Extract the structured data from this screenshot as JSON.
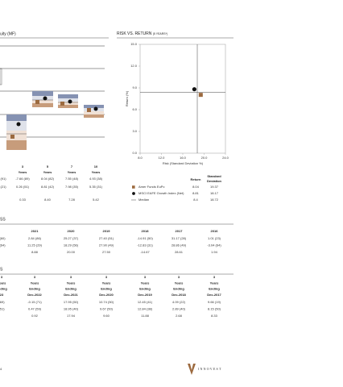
{
  "header": {
    "left_title": "uity (MF)",
    "right_title": "RISK VS. RETURN",
    "right_subtitle": "(5 YEARS*)"
  },
  "trailing": {
    "periods": [
      [
        "3",
        "Years"
      ],
      [
        "5",
        "Years"
      ],
      [
        "7",
        "Years"
      ],
      [
        "10",
        "Years"
      ]
    ],
    "rows": [
      [
        "(91)",
        "-7.66 (89)",
        "8.04 (82)",
        "7.55 (48)",
        "4.93 (38)"
      ],
      [
        "(21)",
        "0.26 (51)",
        "8.81 (42)",
        "7.98 (35)",
        "5.35 (31)"
      ],
      [
        "",
        "0.33",
        "8.40",
        "7.28",
        "5.42"
      ]
    ]
  },
  "chart_data": {
    "type": "scatter",
    "xlabel": "Risk (Standard Deviation %)",
    "ylabel": "Return (%)",
    "xlim": [
      8,
      24
    ],
    "xticks": [
      {
        "value": 8,
        "label": "8.0"
      },
      {
        "value": 12,
        "label": "12.0"
      },
      {
        "value": 16,
        "label": "16.0"
      },
      {
        "value": 20,
        "label": "20.0"
      },
      {
        "value": 24,
        "label": "24.0"
      }
    ],
    "ylim": [
      0,
      15
    ],
    "yticks": [
      {
        "value": 0,
        "label": "0.0"
      },
      {
        "value": 3,
        "label": "3.0"
      },
      {
        "value": 6,
        "label": "6.0"
      },
      {
        "value": 9,
        "label": "9.0"
      },
      {
        "value": 12,
        "label": "12.0"
      },
      {
        "value": 15,
        "label": "15.0"
      }
    ],
    "legend_headers": [
      "Return",
      "Standard",
      "Deviation"
    ],
    "series": [
      {
        "name": "Amer Funds EuPc",
        "color": "#9c6a3f",
        "marker": "square",
        "x": [
          19.37
        ],
        "values": [
          8.04
        ]
      },
      {
        "name": "MSCI EAFE Growth Index (Net)",
        "color": "#111111",
        "marker": "circle",
        "x": [
          18.17
        ],
        "values": [
          8.81
        ]
      },
      {
        "name": "Median",
        "color": "#888888",
        "marker": "crosshair",
        "x": [
          18.72
        ],
        "values": [
          8.4
        ]
      }
    ]
  },
  "calendar": {
    "title": "SS",
    "headers": [
      "2021",
      "2020",
      "2019",
      "2018",
      "2017",
      "2016"
    ],
    "rows": [
      [
        "(60)",
        "2.84 (86)",
        "25.27 (37)",
        "27.40 (51)",
        "-14.91 (50)",
        "31.17 (28)",
        "1.01 (23)"
      ],
      [
        "(64)",
        "11.25 (29)",
        "18.29 (56)",
        "27.90 (49)",
        "-12.83 (31)",
        "28.86 (49)",
        "-3.04 (64)"
      ],
      [
        "",
        "8.88",
        "20.00",
        "27.50",
        "-14.67",
        "28.61",
        "1.94"
      ]
    ]
  },
  "rolling": {
    "title": "S",
    "headers": [
      [
        "3",
        "Years",
        "Ending",
        "23"
      ],
      [
        "3",
        "Years",
        "Ending",
        "Dec-2022"
      ],
      [
        "3",
        "Years",
        "Ending",
        "Dec-2021"
      ],
      [
        "3",
        "Years",
        "Ending",
        "Dec-2020"
      ],
      [
        "3",
        "Years",
        "Ending",
        "Dec-2019"
      ],
      [
        "3",
        "Years",
        "Ending",
        "Dec-2018"
      ],
      [
        "3",
        "Years",
        "Ending",
        "Dec-2017"
      ]
    ],
    "rows": [
      [
        "(69)",
        "-0.15 (71)",
        "17.95 (50)",
        "10.74 (50)",
        "12.45 (41)",
        "4.09 (22)",
        "9.66 (19)"
      ],
      [
        "(51)",
        "0.47 (59)",
        "18.95 (40)",
        "9.67 (50)",
        "12.84 (38)",
        "2.89 (40)",
        "8.15 (50)"
      ],
      [
        "",
        "0.92",
        "17.94",
        "9.60",
        "11.88",
        "2.68",
        "8.33"
      ]
    ]
  },
  "footer": {
    "page": "4",
    "logo": "INNOVEST"
  }
}
